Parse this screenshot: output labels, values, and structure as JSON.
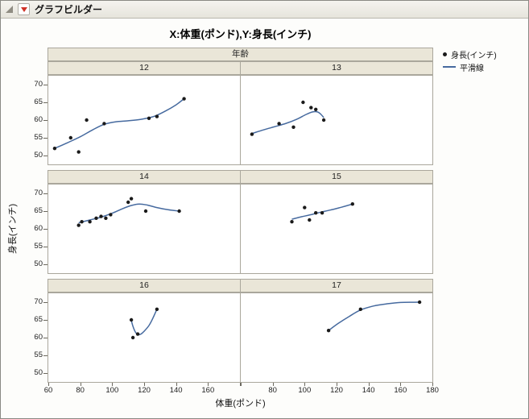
{
  "window": {
    "title": "グラフビルダー"
  },
  "chart": {
    "title": "X:体重(ポンド),Y:身長(インチ)",
    "facet_label": "年齢",
    "x_axis_label": "体重(ポンド)",
    "y_axis_label": "身長(インチ)",
    "legend": {
      "series_label": "身長(インチ)",
      "smoother_label": "平滑線"
    }
  },
  "chart_data": {
    "type": "scatter",
    "facet_variable": "年齢",
    "x_variable": "体重(ポンド)",
    "y_variable": "身長(インチ)",
    "x_range": [
      60,
      180
    ],
    "y_range": [
      47.5,
      72.5
    ],
    "x_ticks": [
      60,
      80,
      100,
      120,
      140,
      160,
      180
    ],
    "y_ticks": [
      50,
      55,
      60,
      65,
      70
    ],
    "grid": "off",
    "legend_position": "top-right",
    "point_color": "#1a1a1a",
    "smoother_color": "#466a9f",
    "panels": [
      {
        "label": "12",
        "points": [
          [
            64,
            52
          ],
          [
            74,
            55
          ],
          [
            79,
            51
          ],
          [
            84,
            60
          ],
          [
            95,
            59
          ],
          [
            123,
            60.5
          ],
          [
            128,
            61
          ],
          [
            145,
            66
          ]
        ],
        "smooth": [
          [
            64,
            52
          ],
          [
            72,
            53.6
          ],
          [
            80,
            55.3
          ],
          [
            88,
            57.3
          ],
          [
            95,
            58.8
          ],
          [
            102,
            59.5
          ],
          [
            110,
            59.8
          ],
          [
            118,
            60.2
          ],
          [
            126,
            61
          ],
          [
            134,
            62.7
          ],
          [
            140,
            64.3
          ],
          [
            145,
            66
          ]
        ]
      },
      {
        "label": "13",
        "points": [
          [
            67,
            56
          ],
          [
            84,
            59
          ],
          [
            93,
            58
          ],
          [
            99,
            65
          ],
          [
            104,
            63.5
          ],
          [
            107,
            63
          ],
          [
            112,
            60
          ]
        ],
        "smooth": [
          [
            67,
            56.2
          ],
          [
            74,
            57.2
          ],
          [
            81,
            58.1
          ],
          [
            88,
            59
          ],
          [
            95,
            60.2
          ],
          [
            101,
            61.6
          ],
          [
            105,
            62.3
          ],
          [
            108,
            62.3
          ],
          [
            110,
            61.7
          ],
          [
            112,
            60.7
          ]
        ]
      },
      {
        "label": "14",
        "points": [
          [
            79,
            61
          ],
          [
            81,
            62
          ],
          [
            86,
            62
          ],
          [
            90,
            63
          ],
          [
            93,
            63.5
          ],
          [
            96,
            63
          ],
          [
            99,
            64
          ],
          [
            110,
            67.5
          ],
          [
            112,
            68.5
          ],
          [
            121,
            65
          ],
          [
            142,
            65
          ]
        ],
        "smooth": [
          [
            79,
            61.7
          ],
          [
            86,
            62.5
          ],
          [
            93,
            63.3
          ],
          [
            100,
            64.4
          ],
          [
            106,
            65.6
          ],
          [
            112,
            66.6
          ],
          [
            117,
            67
          ],
          [
            122,
            66.7
          ],
          [
            128,
            66
          ],
          [
            135,
            65.4
          ],
          [
            142,
            65
          ]
        ]
      },
      {
        "label": "15",
        "points": [
          [
            92,
            62
          ],
          [
            100,
            66
          ],
          [
            103,
            62.5
          ],
          [
            107,
            64.5
          ],
          [
            111,
            64.5
          ],
          [
            130,
            67
          ]
        ],
        "smooth": [
          [
            92,
            62.7
          ],
          [
            98,
            63.4
          ],
          [
            104,
            64
          ],
          [
            110,
            64.7
          ],
          [
            116,
            65.3
          ],
          [
            123,
            66.1
          ],
          [
            130,
            67
          ]
        ]
      },
      {
        "label": "16",
        "points": [
          [
            112,
            65
          ],
          [
            113,
            60
          ],
          [
            116,
            61
          ],
          [
            128,
            68
          ]
        ],
        "smooth": [
          [
            112,
            64.8
          ],
          [
            113,
            63.2
          ],
          [
            114.5,
            61.6
          ],
          [
            116,
            60.9
          ],
          [
            118,
            61
          ],
          [
            120,
            61.8
          ],
          [
            123,
            63.4
          ],
          [
            125.5,
            65.5
          ],
          [
            128,
            68
          ]
        ]
      },
      {
        "label": "17",
        "points": [
          [
            115,
            62
          ],
          [
            135,
            68
          ],
          [
            172,
            70
          ]
        ],
        "smooth": [
          [
            115,
            62
          ],
          [
            121,
            64
          ],
          [
            128,
            66
          ],
          [
            135,
            67.8
          ],
          [
            143,
            68.9
          ],
          [
            151,
            69.5
          ],
          [
            160,
            69.9
          ],
          [
            172,
            70
          ]
        ]
      }
    ]
  }
}
